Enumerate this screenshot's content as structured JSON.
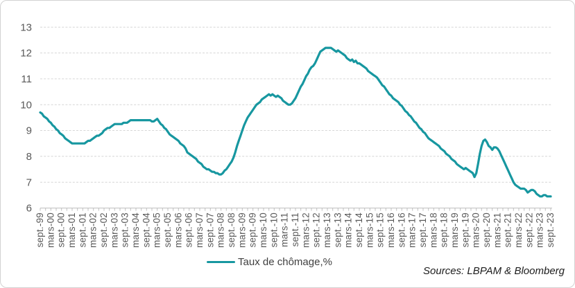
{
  "chart": {
    "legend_label": "Taux de chômage,%",
    "sources": "Sources: LBPAM & Bloomberg",
    "line_color": "#1797A0",
    "axis_text_color": "#595959",
    "gridline_color": "#d6d6d6",
    "axis_line_color": "#bfbfbf"
  },
  "chart_data": {
    "type": "line",
    "title": "",
    "xlabel": "",
    "ylabel": "",
    "legend": [
      "Taux de chômage,%"
    ],
    "legend_position": "bottom",
    "grid": "horizontal-dashed",
    "ylim": [
      6,
      13
    ],
    "y_ticks": [
      6,
      7,
      8,
      9,
      10,
      11,
      12,
      13
    ],
    "x_start": "sept.-99",
    "x_end": "sept.-23",
    "points_frequency": "monthly",
    "x_tick_labels": [
      "sept.-99",
      "mars-00",
      "sept.-00",
      "mars-01",
      "sept.-01",
      "mars-02",
      "sept.-02",
      "mars-03",
      "sept.-03",
      "mars-04",
      "sept.-04",
      "mars-05",
      "sept.-05",
      "mars-06",
      "sept.-06",
      "mars-07",
      "sept.-07",
      "mars-08",
      "sept.-08",
      "mars-09",
      "sept.-09",
      "mars-10",
      "sept.-10",
      "mars-11",
      "sept.-11",
      "mars-12",
      "sept.-12",
      "mars-13",
      "sept.-13",
      "mars-14",
      "sept.-14",
      "mars-15",
      "sept.-15",
      "mars-16",
      "sept.-16",
      "mars-17",
      "sept.-17",
      "mars-18",
      "sept.-18",
      "mars-19",
      "sept.-19",
      "mars-20",
      "sept.-20",
      "mars-21",
      "sept.-21",
      "mars-22",
      "sept.-22",
      "mars-23",
      "sept.-23"
    ],
    "values": [
      9.7,
      9.65,
      9.55,
      9.5,
      9.45,
      9.35,
      9.3,
      9.2,
      9.15,
      9.05,
      9.0,
      8.9,
      8.85,
      8.8,
      8.7,
      8.65,
      8.6,
      8.55,
      8.5,
      8.5,
      8.5,
      8.5,
      8.5,
      8.5,
      8.5,
      8.5,
      8.55,
      8.6,
      8.6,
      8.65,
      8.7,
      8.75,
      8.8,
      8.8,
      8.85,
      8.9,
      9.0,
      9.05,
      9.1,
      9.1,
      9.15,
      9.2,
      9.25,
      9.25,
      9.25,
      9.25,
      9.25,
      9.3,
      9.3,
      9.3,
      9.35,
      9.4,
      9.4,
      9.4,
      9.4,
      9.4,
      9.4,
      9.4,
      9.4,
      9.4,
      9.4,
      9.4,
      9.4,
      9.35,
      9.35,
      9.4,
      9.45,
      9.35,
      9.25,
      9.2,
      9.1,
      9.05,
      8.95,
      8.85,
      8.8,
      8.75,
      8.7,
      8.65,
      8.6,
      8.5,
      8.45,
      8.4,
      8.3,
      8.15,
      8.1,
      8.05,
      8.0,
      7.95,
      7.9,
      7.8,
      7.75,
      7.7,
      7.6,
      7.55,
      7.5,
      7.5,
      7.45,
      7.4,
      7.4,
      7.35,
      7.35,
      7.3,
      7.3,
      7.35,
      7.45,
      7.5,
      7.6,
      7.7,
      7.8,
      7.95,
      8.15,
      8.4,
      8.6,
      8.8,
      9.0,
      9.2,
      9.35,
      9.5,
      9.6,
      9.7,
      9.8,
      9.9,
      10.0,
      10.05,
      10.1,
      10.2,
      10.25,
      10.3,
      10.35,
      10.4,
      10.35,
      10.4,
      10.35,
      10.3,
      10.35,
      10.3,
      10.25,
      10.15,
      10.1,
      10.05,
      10.0,
      10.0,
      10.05,
      10.15,
      10.25,
      10.4,
      10.55,
      10.7,
      10.8,
      10.95,
      11.1,
      11.2,
      11.35,
      11.45,
      11.5,
      11.6,
      11.75,
      11.9,
      12.05,
      12.1,
      12.15,
      12.2,
      12.2,
      12.2,
      12.2,
      12.15,
      12.1,
      12.05,
      12.1,
      12.05,
      12.0,
      11.95,
      11.9,
      11.8,
      11.75,
      11.7,
      11.75,
      11.65,
      11.7,
      11.6,
      11.6,
      11.55,
      11.5,
      11.45,
      11.4,
      11.3,
      11.25,
      11.2,
      11.15,
      11.1,
      11.05,
      10.95,
      10.85,
      10.75,
      10.7,
      10.6,
      10.5,
      10.4,
      10.35,
      10.25,
      10.2,
      10.15,
      10.1,
      10.0,
      9.95,
      9.85,
      9.75,
      9.7,
      9.6,
      9.55,
      9.45,
      9.35,
      9.3,
      9.2,
      9.1,
      9.05,
      8.95,
      8.9,
      8.8,
      8.7,
      8.65,
      8.6,
      8.55,
      8.5,
      8.45,
      8.4,
      8.3,
      8.25,
      8.2,
      8.1,
      8.05,
      8.0,
      7.9,
      7.85,
      7.8,
      7.7,
      7.65,
      7.6,
      7.55,
      7.5,
      7.55,
      7.5,
      7.45,
      7.4,
      7.35,
      7.2,
      7.35,
      7.7,
      8.1,
      8.4,
      8.6,
      8.65,
      8.55,
      8.4,
      8.35,
      8.25,
      8.35,
      8.35,
      8.3,
      8.2,
      8.05,
      7.9,
      7.75,
      7.6,
      7.45,
      7.3,
      7.15,
      7.0,
      6.9,
      6.85,
      6.8,
      6.75,
      6.75,
      6.75,
      6.7,
      6.6,
      6.65,
      6.7,
      6.7,
      6.65,
      6.55,
      6.5,
      6.45,
      6.45,
      6.5,
      6.5,
      6.45,
      6.45,
      6.45
    ]
  }
}
